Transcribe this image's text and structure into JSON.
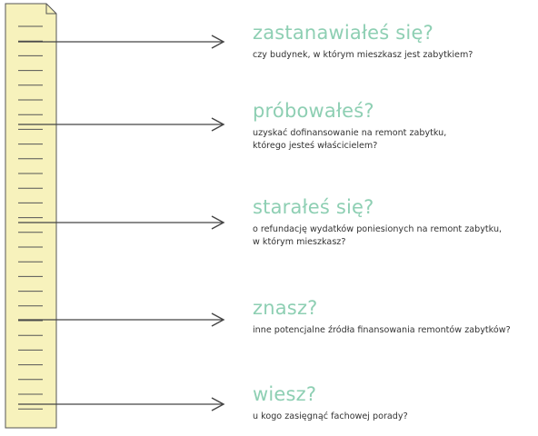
{
  "colors": {
    "title": "#8ecfb3",
    "text": "#333333",
    "ruler_fill": "#f7f2bc",
    "ruler_stroke": "#555555",
    "arrow": "#444444"
  },
  "items": [
    {
      "title": "zastanawiałeś się?",
      "text": "czy budynek, w którym mieszkasz jest zabytkiem?"
    },
    {
      "title": "próbowałeś?",
      "text": "uzyskać dofinansowanie na remont zabytku,\nktórego jesteś właścicielem?"
    },
    {
      "title": "starałeś się?",
      "text": "o refundację wydatków poniesionych na remont zabytku,\nw którym mieszkasz?"
    },
    {
      "title": "znasz?",
      "text": "inne potencjalne źródła finansowania remontów zabytków?"
    },
    {
      "title": "wiesz?",
      "text": "u kogo zasięgnąć fachowej porady?"
    }
  ]
}
